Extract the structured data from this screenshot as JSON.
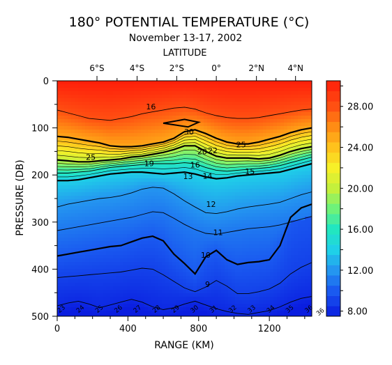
{
  "chart_data": {
    "type": "heatmap",
    "title": "180° POTENTIAL TEMPERATURE (°C)",
    "subtitle": "November 13-17, 2002",
    "top_axis_label": "LATITUDE",
    "xlabel": "RANGE (KM)",
    "ylabel": "PRESSURE (DB)",
    "xlim": [
      0,
      1440
    ],
    "ylim": [
      0,
      500
    ],
    "y_inverted": true,
    "x_ticks": [
      0,
      400,
      800,
      1200
    ],
    "x_tick_labels": [
      "0",
      "400",
      "800",
      "1200"
    ],
    "y_ticks": [
      0,
      100,
      200,
      300,
      400,
      500
    ],
    "y_tick_labels": [
      "0",
      "100",
      "200",
      "300",
      "400",
      "500"
    ],
    "lat_ticks": [
      {
        "label": "6°S",
        "range": 225
      },
      {
        "label": "4°S",
        "range": 452
      },
      {
        "label": "2°S",
        "range": 676
      },
      {
        "label": "0°",
        "range": 900
      },
      {
        "label": "2°N",
        "range": 1127
      },
      {
        "label": "4°N",
        "range": 1348
      }
    ],
    "colorbar": {
      "min": 7.5,
      "max": 30.5,
      "ticks": [
        8,
        12,
        16,
        20,
        24,
        28
      ],
      "tick_labels": [
        "8.00",
        "12.00",
        "16.00",
        "20.00",
        "24.00",
        "28.00"
      ]
    },
    "stations": [
      0,
      60,
      120,
      180,
      240,
      300,
      360,
      420,
      480,
      540,
      600,
      660,
      720,
      780,
      840,
      900,
      960,
      1020,
      1080,
      1140,
      1200,
      1260,
      1320,
      1380,
      1440
    ],
    "isotherm_depths": [
      {
        "temperature": 28,
        "depths": [
          62,
          68,
          74,
          80,
          82,
          84,
          80,
          76,
          70,
          66,
          62,
          58,
          56,
          60,
          68,
          74,
          78,
          80,
          80,
          78,
          74,
          70,
          66,
          62,
          60
        ]
      },
      {
        "temperature": 25,
        "depths": [
          118,
          120,
          124,
          128,
          132,
          138,
          140,
          140,
          138,
          134,
          130,
          122,
          108,
          104,
          112,
          122,
          130,
          134,
          134,
          130,
          124,
          118,
          110,
          104,
          100
        ]
      },
      {
        "temperature": 20,
        "depths": [
          168,
          170,
          172,
          172,
          170,
          168,
          166,
          162,
          160,
          156,
          152,
          146,
          138,
          138,
          150,
          160,
          164,
          164,
          164,
          166,
          164,
          158,
          150,
          144,
          140
        ]
      },
      {
        "temperature": 16,
        "depths": [
          196,
          196,
          194,
          192,
          188,
          184,
          182,
          180,
          178,
          176,
          176,
          176,
          174,
          176,
          184,
          190,
          192,
          190,
          188,
          186,
          184,
          180,
          174,
          168,
          162
        ]
      },
      {
        "temperature": 14,
        "depths": [
          212,
          212,
          210,
          206,
          202,
          198,
          196,
          194,
          194,
          196,
          198,
          196,
          194,
          198,
          204,
          208,
          206,
          202,
          200,
          198,
          196,
          194,
          188,
          182,
          176
        ]
      },
      {
        "temperature": 12,
        "depths": [
          268,
          262,
          258,
          254,
          250,
          248,
          244,
          238,
          230,
          226,
          228,
          240,
          255,
          268,
          280,
          282,
          278,
          272,
          268,
          265,
          262,
          258,
          250,
          242,
          236
        ]
      },
      {
        "temperature": 11,
        "depths": [
          318,
          314,
          310,
          306,
          302,
          298,
          294,
          290,
          284,
          278,
          280,
          292,
          305,
          316,
          324,
          326,
          322,
          318,
          314,
          312,
          310,
          306,
          300,
          294,
          288
        ]
      },
      {
        "temperature": 10,
        "depths": [
          372,
          368,
          364,
          360,
          356,
          352,
          350,
          342,
          334,
          330,
          340,
          368,
          388,
          410,
          374,
          360,
          380,
          390,
          386,
          384,
          380,
          350,
          290,
          270,
          262
        ]
      },
      {
        "temperature": 9,
        "depths": [
          418,
          416,
          414,
          412,
          410,
          408,
          406,
          402,
          398,
          400,
          412,
          426,
          440,
          448,
          438,
          424,
          436,
          452,
          452,
          448,
          442,
          430,
          410,
          396,
          386
        ]
      },
      {
        "temperature": 8,
        "depths": [
          478,
          472,
          468,
          474,
          482,
          476,
          470,
          464,
          470,
          480,
          486,
          482,
          474,
          468,
          476,
          484,
          490,
          494,
          496,
          492,
          488,
          480,
          470,
          462,
          458
        ]
      }
    ],
    "contour_labels": [
      {
        "text": "16",
        "range": 530,
        "pressure": 55
      },
      {
        "text": "30",
        "range": 745,
        "pressure": 108
      },
      {
        "text": "25",
        "range": 1040,
        "pressure": 135
      },
      {
        "text": "25",
        "range": 190,
        "pressure": 162
      },
      {
        "text": "20",
        "range": 820,
        "pressure": 150
      },
      {
        "text": "22",
        "range": 880,
        "pressure": 148
      },
      {
        "text": "19",
        "range": 520,
        "pressure": 175
      },
      {
        "text": "16",
        "range": 780,
        "pressure": 178
      },
      {
        "text": "15",
        "range": 1090,
        "pressure": 192
      },
      {
        "text": "13",
        "range": 740,
        "pressure": 203
      },
      {
        "text": "14",
        "range": 850,
        "pressure": 202
      },
      {
        "text": "12",
        "range": 870,
        "pressure": 262
      },
      {
        "text": "11",
        "range": 910,
        "pressure": 322
      },
      {
        "text": "10",
        "range": 840,
        "pressure": 370
      },
      {
        "text": "9",
        "range": 850,
        "pressure": 432
      }
    ],
    "bottom_contour_labels": [
      "23",
      "24",
      "25",
      "26",
      "27",
      "28",
      "29",
      "30",
      "31",
      "32",
      "33",
      "34",
      "35",
      "36"
    ]
  }
}
